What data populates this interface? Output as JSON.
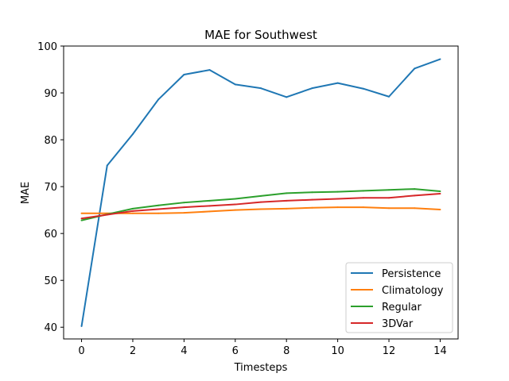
{
  "chart_data": {
    "type": "line",
    "title": "MAE for Southwest",
    "xlabel": "Timesteps",
    "ylabel": "MAE",
    "x": [
      0,
      1,
      2,
      3,
      4,
      5,
      6,
      7,
      8,
      9,
      10,
      11,
      12,
      13,
      14
    ],
    "xlim": [
      -0.7,
      14.7
    ],
    "ylim": [
      37.5,
      100
    ],
    "xticks": [
      0,
      2,
      4,
      6,
      8,
      10,
      12,
      14
    ],
    "yticks": [
      40,
      50,
      60,
      70,
      80,
      90,
      100
    ],
    "grid": false,
    "legend_position": "lower-right",
    "series": [
      {
        "name": "Persistence",
        "color": "#1f77b4",
        "values": [
          40.2,
          74.5,
          81.2,
          88.6,
          93.9,
          94.9,
          91.8,
          91.0,
          89.1,
          91.0,
          92.1,
          90.9,
          89.2,
          95.2,
          97.2
        ]
      },
      {
        "name": "Climatology",
        "color": "#ff7f0e",
        "values": [
          64.3,
          64.3,
          64.3,
          64.3,
          64.4,
          64.7,
          65.0,
          65.2,
          65.3,
          65.5,
          65.6,
          65.6,
          65.4,
          65.4,
          65.1
        ]
      },
      {
        "name": "Regular",
        "color": "#2ca02c",
        "values": [
          62.8,
          64.1,
          65.3,
          66.0,
          66.6,
          67.0,
          67.4,
          68.0,
          68.6,
          68.8,
          68.9,
          69.1,
          69.3,
          69.5,
          69.0
        ]
      },
      {
        "name": "3DVar",
        "color": "#d62728",
        "values": [
          63.2,
          64.0,
          64.8,
          65.2,
          65.6,
          65.9,
          66.2,
          66.7,
          67.0,
          67.2,
          67.4,
          67.6,
          67.6,
          68.1,
          68.5
        ]
      }
    ]
  }
}
